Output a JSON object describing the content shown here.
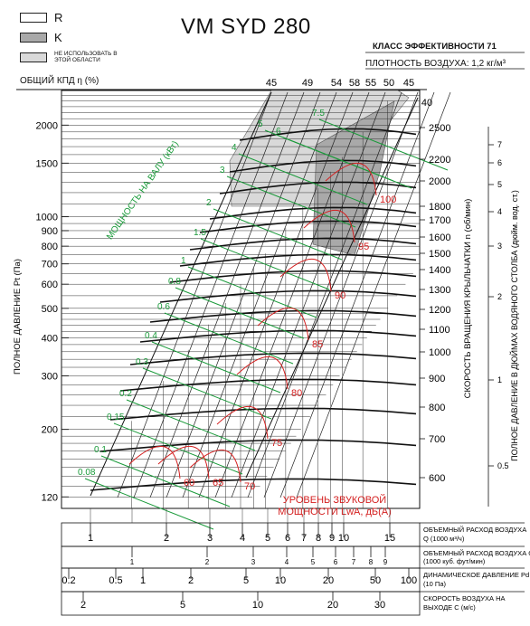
{
  "title": "VM SYD 280",
  "efficiency_class": "КЛАСС ЭФФЕКТИВНОСТИ 71",
  "air_density": "ПЛОТНОСТЬ ВОЗДУХА: 1,2 кг/м³",
  "legend": [
    {
      "label": "R",
      "color": "#ffffff",
      "icon": "swatch-white"
    },
    {
      "label": "K",
      "color": "#a9a9a9",
      "icon": "swatch-dark-grey"
    },
    {
      "label": "НЕ ИСПОЛЬЗОВАТЬ В ЭТОЙ ОБЛАСТИ",
      "color": "#d9d9d9",
      "icon": "swatch-light-grey"
    }
  ],
  "colors": {
    "power": "#1a9a3a",
    "sound": "#d42020",
    "curve": "#111111",
    "zone_k": "#a9a9a9",
    "zone_avoid": "#d9d9d9"
  },
  "chart_data": {
    "type": "line",
    "title": "VM SYD 280",
    "efficiency_label": "ОБЩИЙ КПД η (%)",
    "efficiency_values": [
      "45",
      "49",
      "54",
      "58",
      "55",
      "50",
      "45",
      "40"
    ],
    "ylabel": "ПОЛНОЕ ДАВЛЕНИЕ Pt (Па)",
    "y_ticks": [
      "2000",
      "1500",
      "1000",
      "900",
      "800",
      "700",
      "600",
      "500",
      "400",
      "300",
      "200",
      "120"
    ],
    "ylim": [
      110,
      2600
    ],
    "y_scale": "log",
    "xlim": [
      0.8,
      20
    ],
    "x_scale": "log",
    "speed_label": "СКОРОСТЬ ВРАЩЕНИЯ КРЫЛЬЧАТКИ n (об/мин)",
    "speed_ticks": [
      "2500",
      "2200",
      "2000",
      "1800",
      "1700",
      "1600",
      "1500",
      "1400",
      "1300",
      "1200",
      "1100",
      "1000",
      "900",
      "800",
      "700",
      "600"
    ],
    "inch_label": "ПОЛНОЕ ДАВЛЕНИЕ В ДЮЙМАХ ВОДЯНОГО СТОЛБА (дюйм. вод. ст.)",
    "inch_ticks": [
      "7",
      "6",
      "5",
      "4",
      "3",
      "2",
      "1",
      "0.5"
    ],
    "power_label": "МОЩНОСТЬ НА ВАЛУ (кВт)",
    "power_values": [
      "0.08",
      "0.1",
      "0.15",
      "0.2",
      "0.3",
      "0.4",
      "0.6",
      "0.8",
      "1",
      "1.5",
      "2",
      "3",
      "4",
      "5",
      "6",
      "7.5"
    ],
    "sound_label": "УРОВЕНЬ ЗВУКОВОЙ МОЩНОСТИ LwA, дБ(А)",
    "sound_values": [
      "60",
      "65",
      "70",
      "75",
      "80",
      "85",
      "90",
      "95",
      "100"
    ],
    "x_scales": [
      {
        "label": "ОБЪЕМНЫЙ РАСХОД ВОЗДУХА Q (1000 м³/ч)",
        "ticks": [
          "1",
          "2",
          "3",
          "4",
          "5",
          "6",
          "7",
          "8",
          "9",
          "10",
          "15"
        ]
      },
      {
        "label": "ОБЪЕМНЫЙ РАСХОД ВОЗДУХА Q (1000 куб. фут/мин)",
        "ticks": [
          "1",
          "2",
          "3",
          "4",
          "5",
          "6",
          "7",
          "8",
          "9"
        ]
      },
      {
        "label": "ДИНАМИЧЕСКОЕ ДАВЛЕНИЕ Pd (10 Па)",
        "ticks": [
          "0.2",
          "0.5",
          "1",
          "2",
          "5",
          "10",
          "20",
          "50",
          "100"
        ]
      },
      {
        "label": "СКОРОСТЬ ВОЗДУХА НА ВЫХОДЕ C (м/с)",
        "ticks": [
          "2",
          "5",
          "10",
          "20",
          "30"
        ]
      }
    ]
  }
}
